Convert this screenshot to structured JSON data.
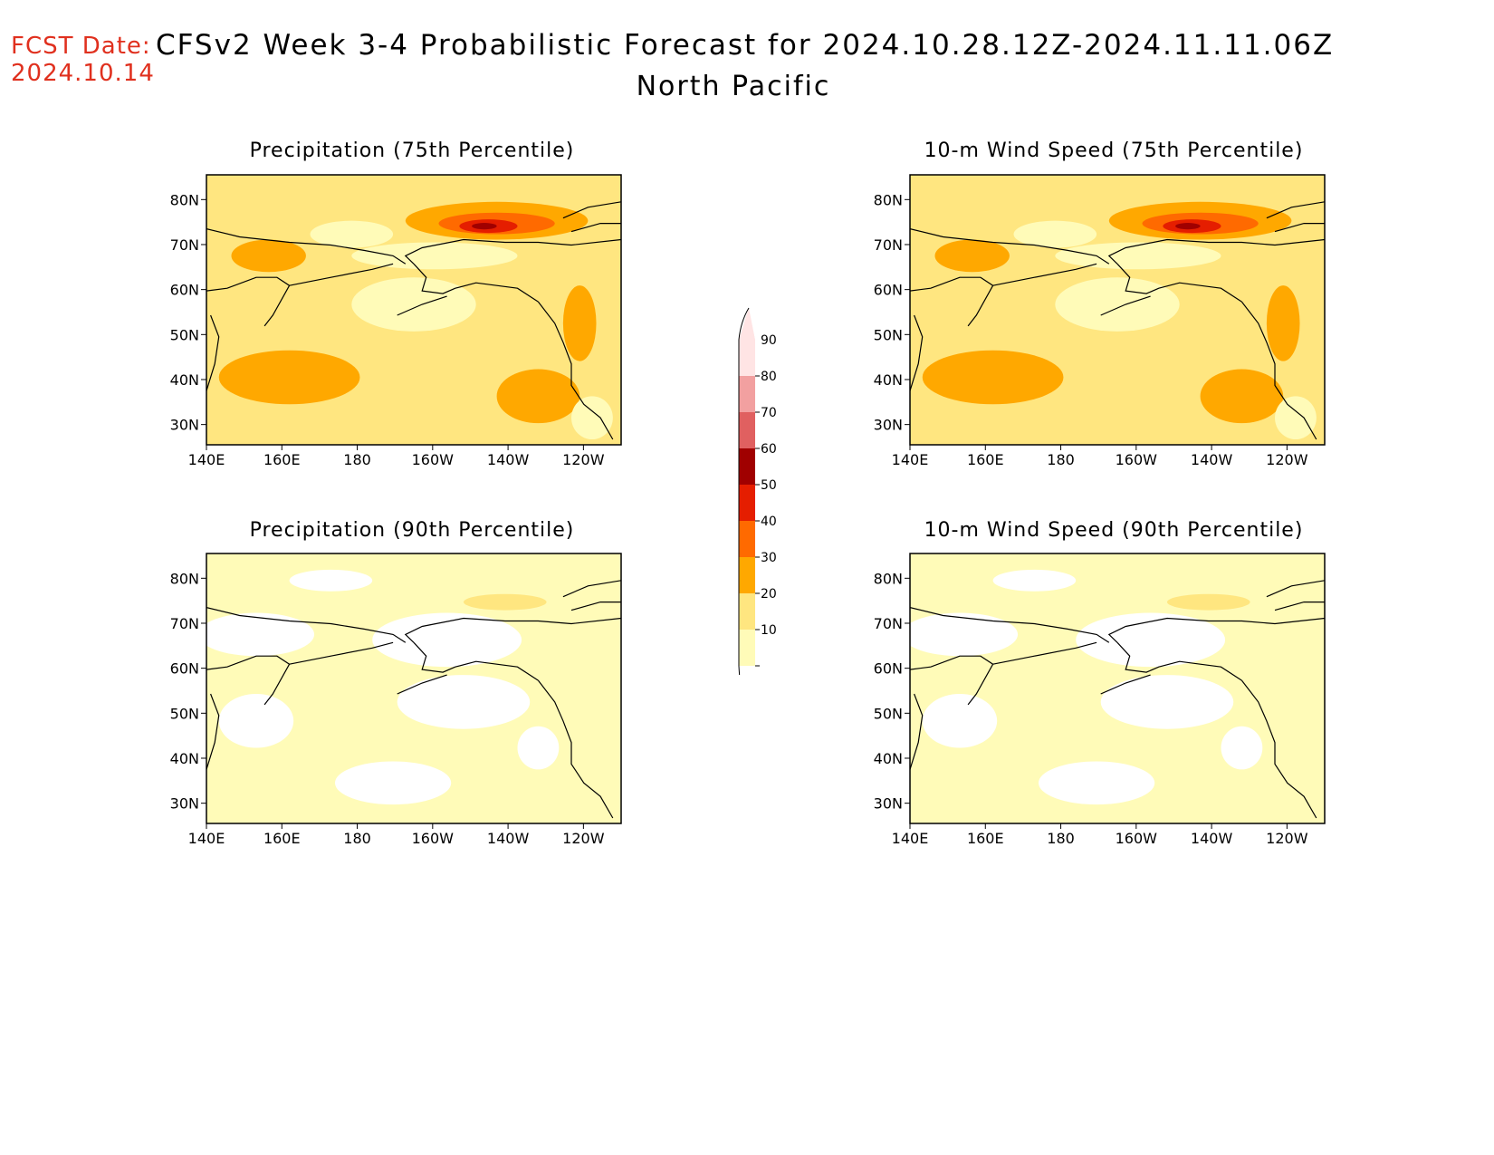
{
  "header": {
    "fcst_label": "FCST Date:",
    "fcst_date": "2024.10.14",
    "title": "CFSv2 Week 3-4 Probabilistic Forecast for 2024.10.28.12Z-2024.11.11.06Z",
    "region": "North Pacific"
  },
  "panels": [
    {
      "id": "precip75",
      "title": "Precipitation (75th Percentile)",
      "level": 3
    },
    {
      "id": "wind75",
      "title": "10-m Wind Speed (75th Percentile)",
      "level": 3
    },
    {
      "id": "precip90",
      "title": "Precipitation (90th Percentile)",
      "level": 1
    },
    {
      "id": "wind90",
      "title": "10-m Wind Speed (90th Percentile)",
      "level": 1
    }
  ],
  "axes": {
    "lon_labels": [
      "140E",
      "160E",
      "180",
      "160W",
      "140W",
      "120W"
    ],
    "lat_labels": [
      "80N",
      "70N",
      "60N",
      "50N",
      "40N",
      "30N"
    ]
  },
  "colorbar": {
    "levels": [
      "10",
      "20",
      "30",
      "40",
      "50",
      "60",
      "70",
      "80",
      "90"
    ],
    "colors": [
      "#fffbb8",
      "#ffe680",
      "#ffa800",
      "#ff6a00",
      "#e51e00",
      "#a00000",
      "#e06060",
      "#f2a0a0",
      "#ffe4e4"
    ]
  }
}
